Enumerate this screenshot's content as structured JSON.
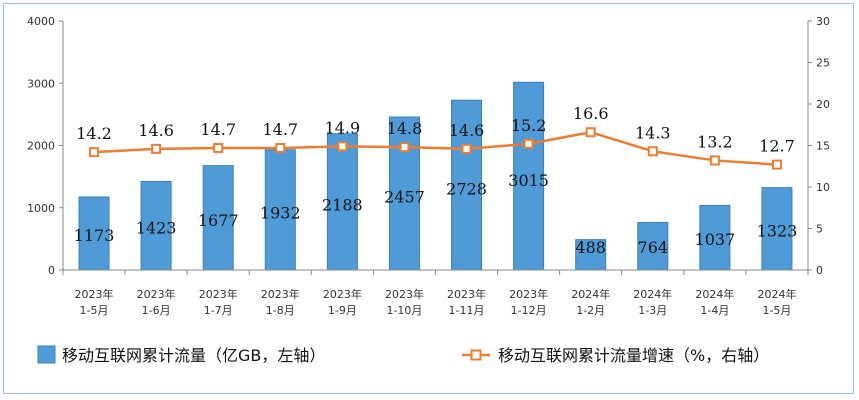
{
  "chart_data": {
    "type": "bar",
    "categories": [
      [
        "2023年",
        "1-5月"
      ],
      [
        "2023年",
        "1-6月"
      ],
      [
        "2023年",
        "1-7月"
      ],
      [
        "2023年",
        "1-8月"
      ],
      [
        "2023年",
        "1-9月"
      ],
      [
        "2023年",
        "1-10月"
      ],
      [
        "2023年",
        "1-11月"
      ],
      [
        "2023年",
        "1-12月"
      ],
      [
        "2024年",
        "1-2月"
      ],
      [
        "2024年",
        "1-3月"
      ],
      [
        "2024年",
        "1-4月"
      ],
      [
        "2024年",
        "1-5月"
      ]
    ],
    "series": [
      {
        "name": "移动互联网累计流量（亿GB，左轴）",
        "type": "bar",
        "axis": "left",
        "color": "#4f9bd8",
        "values": [
          1173,
          1423,
          1677,
          1932,
          2188,
          2457,
          2728,
          3015,
          488,
          764,
          1037,
          1323
        ],
        "labels": [
          "1173",
          "1423",
          "1677",
          "1932",
          "2188",
          "2457",
          "2728",
          "3015",
          "488",
          "764",
          "1037",
          "1323"
        ]
      },
      {
        "name": "移动互联网累计流量增速（%，右轴）",
        "type": "line",
        "axis": "right",
        "color": "#ed7d31",
        "values": [
          14.2,
          14.6,
          14.7,
          14.7,
          14.9,
          14.8,
          14.6,
          15.2,
          16.6,
          14.3,
          13.2,
          12.7
        ],
        "labels": [
          "14.2",
          "14.6",
          "14.7",
          "14.7",
          "14.9",
          "14.8",
          "14.6",
          "15.2",
          "16.6",
          "14.3",
          "13.2",
          "12.7"
        ]
      }
    ],
    "y_left": {
      "min": 0,
      "max": 4000,
      "ticks": [
        "0",
        "1000",
        "2000",
        "3000",
        "4000"
      ]
    },
    "y_right": {
      "min": 0,
      "max": 30,
      "ticks": [
        "0",
        "5",
        "10",
        "15",
        "20",
        "25",
        "30"
      ]
    },
    "grid": false,
    "legend_position": "bottom"
  }
}
